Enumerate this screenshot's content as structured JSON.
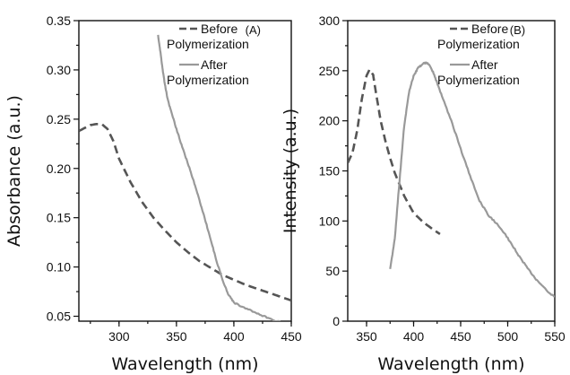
{
  "chart_data": [
    {
      "type": "line",
      "panel_label": "(A)",
      "xlabel": "Wavelength (nm)",
      "ylabel": "Absorbance (a.u.)",
      "xlim": [
        265,
        450
      ],
      "ylim": [
        0.045,
        0.35
      ],
      "xticks": [
        300,
        350,
        400,
        450
      ],
      "xtick_labels": [
        "300",
        "350",
        "400",
        "450"
      ],
      "yticks": [
        0.05,
        0.1,
        0.15,
        0.2,
        0.25,
        0.3,
        0.35
      ],
      "ytick_labels": [
        "0.05",
        "0.10",
        "0.15",
        "0.20",
        "0.25",
        "0.30",
        "0.35"
      ],
      "grid": false,
      "legend_position": "top-right",
      "series": [
        {
          "name": "Before Polymerization",
          "name_lines": [
            "Before",
            "Polymerization"
          ],
          "style": "dashed",
          "color": "#555555",
          "x": [
            265,
            270,
            275,
            280,
            285,
            290,
            295,
            300,
            310,
            320,
            330,
            340,
            350,
            360,
            370,
            380,
            390,
            400,
            410,
            420,
            430,
            440,
            450
          ],
          "y": [
            0.238,
            0.241,
            0.244,
            0.245,
            0.245,
            0.24,
            0.228,
            0.21,
            0.186,
            0.166,
            0.15,
            0.137,
            0.125,
            0.115,
            0.106,
            0.099,
            0.092,
            0.087,
            0.082,
            0.078,
            0.074,
            0.07,
            0.066
          ]
        },
        {
          "name": "After Polymerization",
          "name_lines": [
            "After",
            "Polymerization"
          ],
          "style": "solid",
          "color": "#999999",
          "x": [
            334,
            336,
            338,
            340,
            342,
            345,
            350,
            355,
            360,
            365,
            370,
            375,
            380,
            385,
            390,
            395,
            400,
            410,
            420,
            430,
            440,
            450
          ],
          "y": [
            0.335,
            0.318,
            0.3,
            0.285,
            0.272,
            0.259,
            0.24,
            0.222,
            0.205,
            0.187,
            0.168,
            0.148,
            0.127,
            0.106,
            0.087,
            0.073,
            0.064,
            0.058,
            0.053,
            0.048,
            0.044,
            0.04
          ]
        }
      ]
    },
    {
      "type": "line",
      "panel_label": "(B)",
      "xlabel": "Wavelength (nm)",
      "ylabel": "Intensity (a.u.)",
      "xlim": [
        330,
        550
      ],
      "ylim": [
        0,
        300
      ],
      "xticks": [
        350,
        400,
        450,
        500,
        550
      ],
      "xtick_labels": [
        "350",
        "400",
        "450",
        "500",
        "550"
      ],
      "yticks": [
        0,
        50,
        100,
        150,
        200,
        250,
        300
      ],
      "ytick_labels": [
        "0",
        "50",
        "100",
        "150",
        "200",
        "250",
        "300"
      ],
      "grid": false,
      "legend_position": "top-right",
      "series": [
        {
          "name": "Before Polymerization",
          "name_lines": [
            "Before",
            "Polymerization"
          ],
          "style": "dashed",
          "color": "#555555",
          "x": [
            330,
            335,
            340,
            345,
            350,
            353,
            357,
            360,
            365,
            370,
            375,
            380,
            390,
            400,
            410,
            420,
            428
          ],
          "y": [
            158,
            168,
            190,
            222,
            245,
            251,
            246,
            228,
            200,
            180,
            163,
            148,
            125,
            108,
            99,
            92,
            87
          ]
        },
        {
          "name": "After Polymerization",
          "name_lines": [
            "After",
            "Polymerization"
          ],
          "style": "solid",
          "color": "#999999",
          "x": [
            375,
            380,
            385,
            390,
            395,
            400,
            405,
            410,
            415,
            420,
            425,
            430,
            440,
            450,
            460,
            470,
            480,
            490,
            500,
            510,
            520,
            530,
            540,
            550
          ],
          "y": [
            52,
            82,
            140,
            195,
            228,
            245,
            253,
            257,
            258,
            250,
            238,
            225,
            200,
            172,
            145,
            120,
            105,
            96,
            83,
            68,
            54,
            42,
            32,
            24
          ]
        }
      ]
    }
  ]
}
